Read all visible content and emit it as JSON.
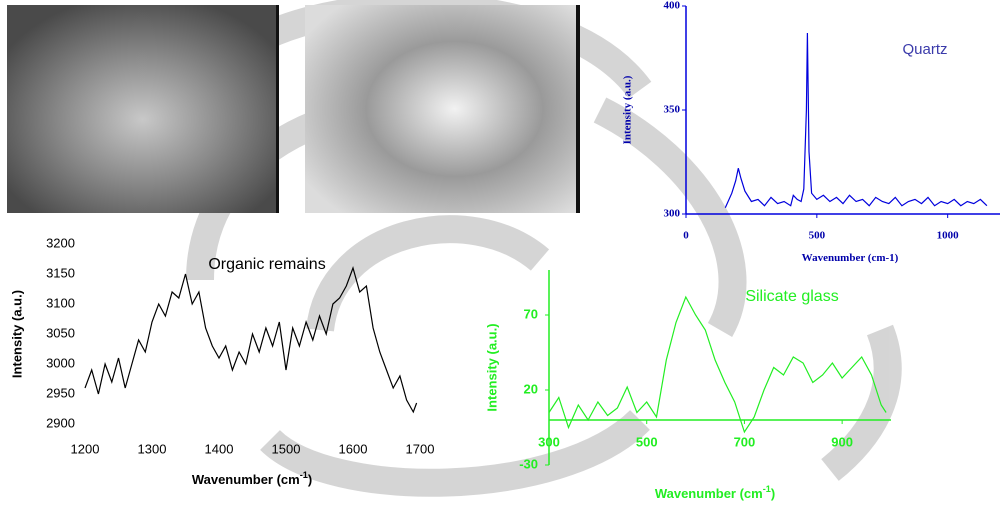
{
  "chart_data": [
    {
      "type": "line",
      "annotation": "Quartz",
      "ylabel": "Intensity (a.u.)",
      "xlabel": {
        "text": "Wavenumber (cm-1)"
      },
      "xlim": [
        0,
        1200
      ],
      "xticks": [
        0,
        500,
        1000
      ],
      "ylim": [
        300,
        400
      ],
      "yticks": [
        300,
        350,
        400
      ],
      "series": [
        {
          "color": "#0000dd",
          "x": [
            150,
            175,
            190,
            200,
            210,
            225,
            250,
            275,
            300,
            325,
            350,
            375,
            400,
            410,
            425,
            440,
            450,
            460,
            464,
            470,
            480,
            500,
            525,
            550,
            575,
            600,
            625,
            650,
            675,
            700,
            725,
            750,
            775,
            800,
            825,
            850,
            875,
            900,
            925,
            950,
            975,
            1000,
            1025,
            1050,
            1075,
            1100,
            1125,
            1150
          ],
          "values": [
            303,
            310,
            316,
            322,
            317,
            311,
            306,
            307,
            304,
            308,
            305,
            306,
            304,
            309,
            307,
            306,
            312,
            350,
            387,
            330,
            310,
            307,
            309,
            306,
            308,
            305,
            309,
            306,
            307,
            304,
            308,
            306,
            305,
            308,
            304,
            306,
            307,
            305,
            308,
            304,
            306,
            305,
            307,
            304,
            306,
            305,
            307,
            304
          ]
        }
      ]
    },
    {
      "type": "line",
      "annotation": "Organic remains",
      "ylabel": "Intensity (a.u.)",
      "xlabel": {
        "text": "Wavenumber (cm",
        "sup": "-1",
        "end": ")"
      },
      "xlim": [
        1200,
        1700
      ],
      "xticks": [
        1200,
        1300,
        1400,
        1500,
        1600,
        1700
      ],
      "ylim": [
        2900,
        3200
      ],
      "yticks": [
        2900,
        2950,
        3000,
        3050,
        3100,
        3150,
        3200
      ],
      "series": [
        {
          "color": "#000000",
          "x": [
            1200,
            1210,
            1220,
            1230,
            1240,
            1250,
            1260,
            1270,
            1280,
            1290,
            1300,
            1310,
            1320,
            1330,
            1340,
            1350,
            1360,
            1370,
            1380,
            1390,
            1400,
            1410,
            1420,
            1430,
            1440,
            1450,
            1460,
            1470,
            1480,
            1490,
            1500,
            1510,
            1520,
            1530,
            1540,
            1550,
            1560,
            1570,
            1580,
            1590,
            1600,
            1610,
            1620,
            1630,
            1640,
            1650,
            1660,
            1670,
            1680,
            1690,
            1695
          ],
          "values": [
            2960,
            2990,
            2950,
            3000,
            2970,
            3010,
            2960,
            3000,
            3040,
            3020,
            3070,
            3100,
            3080,
            3120,
            3110,
            3150,
            3100,
            3120,
            3060,
            3030,
            3010,
            3030,
            2990,
            3020,
            3000,
            3050,
            3020,
            3060,
            3030,
            3070,
            2990,
            3060,
            3030,
            3070,
            3040,
            3080,
            3050,
            3100,
            3110,
            3130,
            3160,
            3120,
            3130,
            3060,
            3020,
            2990,
            2960,
            2980,
            2940,
            2920,
            2935
          ]
        }
      ]
    },
    {
      "type": "line",
      "annotation": "Silicate glass",
      "ylabel": "Intensity (a.u.)",
      "xlabel": {
        "text": "Wavenumber (cm",
        "sup": "-1",
        "end": ")"
      },
      "xlim": [
        300,
        1000
      ],
      "xticks": [
        300,
        500,
        700,
        900
      ],
      "ylim": [
        -30,
        100
      ],
      "yticks": [
        -30,
        20,
        70
      ],
      "series": [
        {
          "color": "#22ee22",
          "x": [
            300,
            320,
            340,
            360,
            380,
            400,
            420,
            440,
            460,
            480,
            500,
            520,
            540,
            560,
            580,
            600,
            620,
            640,
            660,
            680,
            700,
            720,
            740,
            760,
            780,
            800,
            820,
            840,
            860,
            880,
            900,
            920,
            940,
            960,
            980,
            990
          ],
          "values": [
            5,
            15,
            -5,
            10,
            0,
            12,
            3,
            8,
            22,
            5,
            12,
            2,
            40,
            65,
            82,
            70,
            60,
            40,
            25,
            12,
            -8,
            2,
            20,
            35,
            30,
            42,
            38,
            25,
            30,
            38,
            28,
            35,
            42,
            30,
            10,
            5
          ]
        }
      ]
    }
  ]
}
